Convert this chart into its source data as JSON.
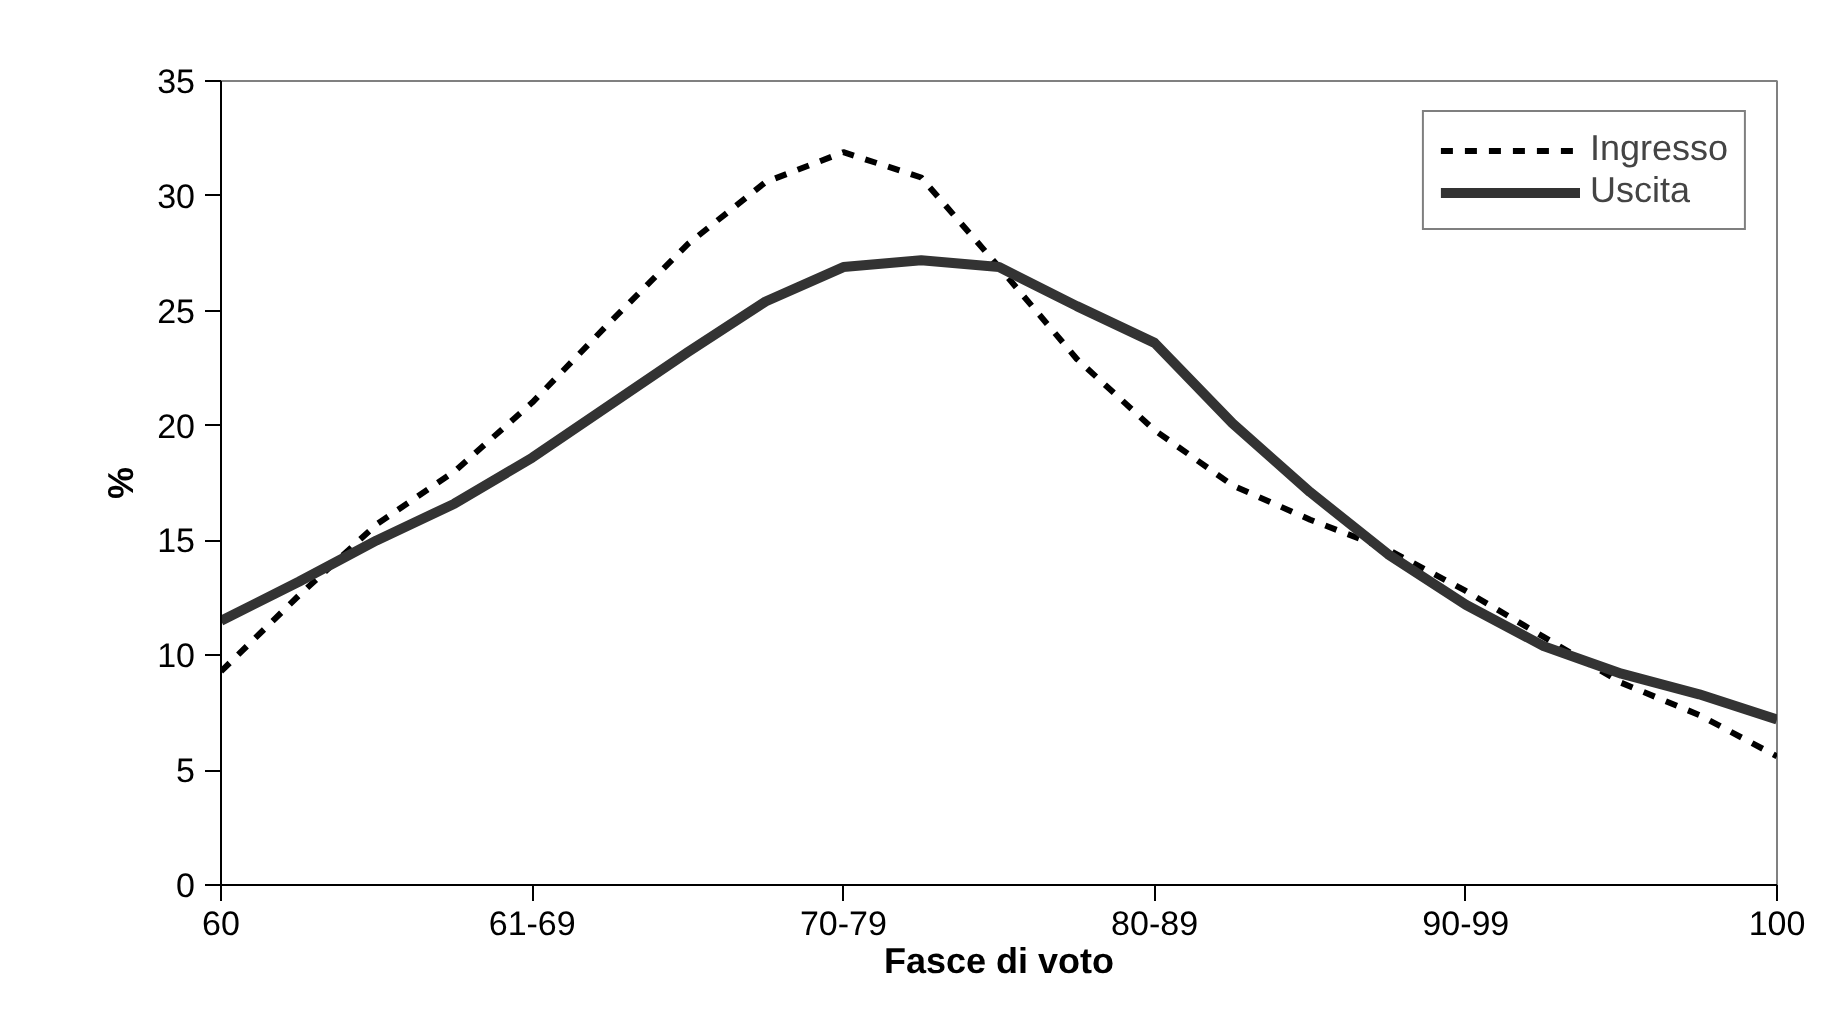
{
  "chart_data": {
    "type": "line",
    "xlabel": "Fasce di voto",
    "ylabel": "%",
    "categories": [
      "60",
      null,
      null,
      null,
      "61-69",
      null,
      null,
      null,
      "70-79",
      null,
      null,
      null,
      "80-89",
      null,
      null,
      null,
      "90-99",
      null,
      null,
      null,
      "100"
    ],
    "series": [
      {
        "name": "Ingresso",
        "color": "#000000",
        "line_style": "dashed",
        "values": [
          9.3,
          12.6,
          15.7,
          18.0,
          21.0,
          24.5,
          27.9,
          30.6,
          31.9,
          30.8,
          26.9,
          22.9,
          19.8,
          17.4,
          15.9,
          14.6,
          12.8,
          10.8,
          8.8,
          7.4,
          5.6
        ]
      },
      {
        "name": "Uscita",
        "color": "#333333",
        "line_style": "solid",
        "values": [
          11.5,
          13.2,
          15.0,
          16.6,
          18.6,
          20.9,
          23.2,
          25.4,
          26.9,
          27.2,
          26.9,
          25.2,
          23.6,
          20.1,
          17.1,
          14.4,
          12.2,
          10.4,
          9.2,
          8.3,
          7.2
        ]
      }
    ],
    "ylim": [
      0,
      35
    ],
    "yticks": [
      0,
      5,
      10,
      15,
      20,
      25,
      30,
      35
    ],
    "grid": false,
    "legend": "top right",
    "marker": "none"
  }
}
